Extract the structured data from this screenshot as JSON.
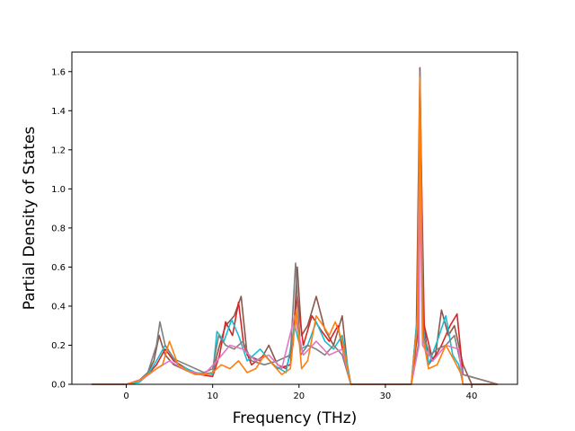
{
  "chart_data": {
    "type": "line",
    "title": "",
    "xlabel": "Frequency (THz)",
    "ylabel": "Partial Density of States",
    "xlim": [
      -6.3,
      45.3
    ],
    "ylim": [
      0.0,
      1.7
    ],
    "xticks": [
      0,
      10,
      20,
      30,
      40
    ],
    "yticks": [
      0.0,
      0.2,
      0.4,
      0.6,
      0.8,
      1.0,
      1.2,
      1.4,
      1.6
    ],
    "ytick_labels": [
      "0.0",
      "0.2",
      "0.4",
      "0.6",
      "0.8",
      "1.0",
      "1.2",
      "1.4",
      "1.6"
    ],
    "grid": false,
    "legend": "none",
    "series": [
      {
        "color": "#8c564b",
        "x": [
          -4,
          0,
          1.5,
          2.5,
          3.2,
          3.8,
          4.5,
          5.5,
          7,
          8.5,
          10,
          10.8,
          11.5,
          12.5,
          13.3,
          14,
          15.5,
          16.5,
          17.5,
          18.5,
          19.3,
          19.8,
          20.3,
          21,
          22,
          23,
          24,
          25,
          25.6,
          26,
          33,
          33.6,
          34,
          34.4,
          35,
          35.8,
          36.5,
          37.3,
          38,
          39,
          40,
          43
        ],
        "y": [
          0,
          0,
          0.02,
          0.06,
          0.12,
          0.25,
          0.15,
          0.1,
          0.07,
          0.05,
          0.06,
          0.2,
          0.3,
          0.35,
          0.45,
          0.15,
          0.12,
          0.2,
          0.1,
          0.08,
          0.2,
          0.6,
          0.25,
          0.3,
          0.45,
          0.28,
          0.2,
          0.35,
          0.1,
          0,
          0,
          0.3,
          1.62,
          0.35,
          0.1,
          0.15,
          0.38,
          0.25,
          0.3,
          0.1,
          0,
          0
        ]
      },
      {
        "color": "#d62728",
        "x": [
          -4,
          0,
          1.5,
          2.5,
          3.5,
          4.5,
          5.5,
          7,
          8.5,
          10,
          10.8,
          11.5,
          12.3,
          13,
          13.6,
          14.5,
          16,
          17.5,
          19,
          19.8,
          20.5,
          21.5,
          22.5,
          23.5,
          24.5,
          25.3,
          26,
          33,
          33.7,
          34,
          34.5,
          35.5,
          36.5,
          37.5,
          38.3,
          39,
          43
        ],
        "y": [
          0,
          0,
          0.02,
          0.05,
          0.1,
          0.18,
          0.12,
          0.08,
          0.05,
          0.04,
          0.15,
          0.32,
          0.25,
          0.42,
          0.2,
          0.1,
          0.15,
          0.08,
          0.1,
          0.45,
          0.2,
          0.35,
          0.28,
          0.22,
          0.3,
          0.12,
          0,
          0,
          0.25,
          1.5,
          0.3,
          0.12,
          0.2,
          0.3,
          0.36,
          0.05,
          0
        ]
      },
      {
        "color": "#17becf",
        "x": [
          -4,
          0,
          1.5,
          2.5,
          3.5,
          4.5,
          6,
          8,
          10,
          10.5,
          11.3,
          12.2,
          13,
          14,
          15.5,
          17,
          18.5,
          19.5,
          20.2,
          21,
          22,
          23,
          24,
          25,
          26,
          33,
          33.8,
          34,
          34.3,
          35,
          36,
          37,
          37.8,
          38.5,
          39,
          43
        ],
        "y": [
          0,
          0,
          0.01,
          0.05,
          0.12,
          0.2,
          0.1,
          0.06,
          0.05,
          0.27,
          0.22,
          0.33,
          0.25,
          0.12,
          0.18,
          0.1,
          0.06,
          0.3,
          0.18,
          0.2,
          0.32,
          0.22,
          0.18,
          0.25,
          0,
          0,
          0.4,
          1.55,
          0.3,
          0.1,
          0.22,
          0.35,
          0.15,
          0.1,
          0,
          0
        ]
      },
      {
        "color": "#7f7f7f",
        "x": [
          -4,
          0,
          1.5,
          2.5,
          3.5,
          3.9,
          4.5,
          5.5,
          7,
          9,
          10,
          10.7,
          11.5,
          12.5,
          13.5,
          14.5,
          16,
          17.5,
          19,
          19.6,
          20.2,
          21,
          22,
          23,
          24,
          25,
          26,
          33,
          33.8,
          34,
          34.4,
          35.2,
          36,
          37,
          38,
          39,
          43
        ],
        "y": [
          0,
          0,
          0.02,
          0.06,
          0.2,
          0.32,
          0.2,
          0.13,
          0.1,
          0.06,
          0.08,
          0.25,
          0.2,
          0.18,
          0.22,
          0.12,
          0.1,
          0.12,
          0.15,
          0.62,
          0.15,
          0.2,
          0.18,
          0.15,
          0.2,
          0.15,
          0,
          0,
          0.2,
          1.6,
          0.25,
          0.15,
          0.18,
          0.2,
          0.25,
          0.05,
          0
        ]
      },
      {
        "color": "#e377c2",
        "x": [
          -4,
          0,
          2,
          3.5,
          5,
          7,
          9,
          10.5,
          12,
          13.5,
          15,
          16.5,
          18,
          19.5,
          20.5,
          22,
          23.5,
          25,
          26,
          33,
          33.9,
          34,
          34.3,
          35.5,
          37,
          38.5,
          39,
          43
        ],
        "y": [
          0,
          0,
          0.03,
          0.08,
          0.12,
          0.07,
          0.05,
          0.12,
          0.2,
          0.18,
          0.12,
          0.15,
          0.08,
          0.35,
          0.15,
          0.22,
          0.15,
          0.18,
          0,
          0,
          0.2,
          1.1,
          0.2,
          0.12,
          0.2,
          0.18,
          0,
          0
        ]
      },
      {
        "color": "#ff7f0e",
        "x": [
          -4,
          0,
          1.5,
          2.5,
          3.5,
          4.2,
          5,
          6,
          7,
          8,
          9,
          10,
          11,
          12,
          13,
          14,
          15,
          16,
          17,
          18,
          19,
          19.7,
          20.3,
          21,
          22,
          22.8,
          23.5,
          24.2,
          25,
          25.6,
          26,
          33,
          33.7,
          34,
          34.3,
          35,
          36,
          37,
          38,
          38.8,
          39,
          43
        ],
        "y": [
          0,
          0,
          0.02,
          0.05,
          0.08,
          0.1,
          0.22,
          0.1,
          0.07,
          0.05,
          0.05,
          0.06,
          0.1,
          0.08,
          0.12,
          0.06,
          0.08,
          0.15,
          0.1,
          0.05,
          0.08,
          0.38,
          0.08,
          0.12,
          0.35,
          0.3,
          0.25,
          0.32,
          0.22,
          0.08,
          0,
          0,
          0.3,
          1.57,
          0.25,
          0.08,
          0.1,
          0.2,
          0.12,
          0.05,
          0,
          0
        ]
      }
    ]
  }
}
